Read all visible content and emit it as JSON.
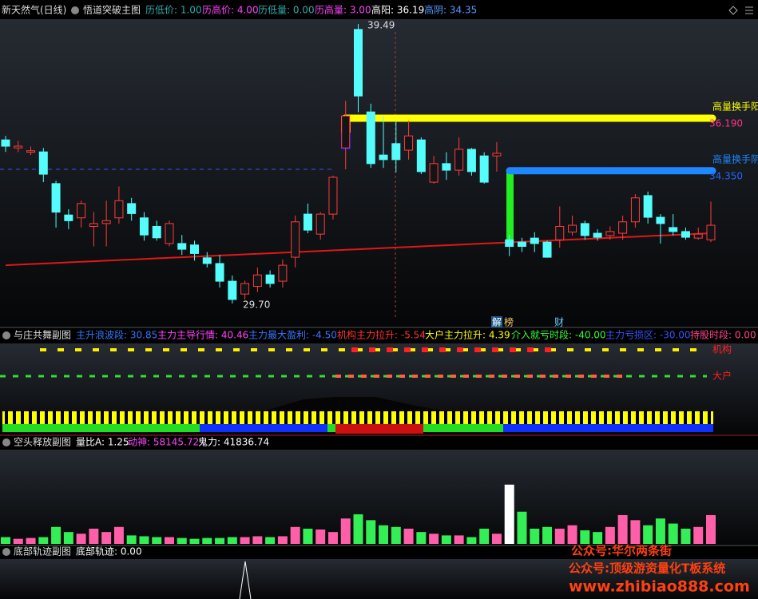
{
  "header": {
    "stock": "新天然气(日线)",
    "indicator": "悟道突破主图",
    "items": [
      "历低价: 1.00",
      "历高价: 4.00",
      "历低量: 0.00",
      "历高量: 3.00",
      "高阳: 36.19",
      "高阴: 34.35"
    ]
  },
  "main": {
    "type": "candlestick",
    "ylim": [
      28.86,
      39.66
    ],
    "up_color": "#ff3c3c",
    "down_color": "#54fcfc",
    "ma_color": "#e01818",
    "candles": [
      [
        35.43,
        35.57,
        35.01,
        35.21
      ],
      [
        35.15,
        35.4,
        35.0,
        35.21
      ],
      [
        35.0,
        35.2,
        34.9,
        35.05
      ],
      [
        35.01,
        35.15,
        33.95,
        34.23
      ],
      [
        33.9,
        34.0,
        32.36,
        32.9
      ],
      [
        32.8,
        33.0,
        32.3,
        32.6
      ],
      [
        32.7,
        33.3,
        32.36,
        33.2
      ],
      [
        32.4,
        32.9,
        31.7,
        32.5
      ],
      [
        32.5,
        33.3,
        31.7,
        32.6
      ],
      [
        32.7,
        33.8,
        32.5,
        33.3
      ],
      [
        33.2,
        33.4,
        32.6,
        32.85
      ],
      [
        32.7,
        32.9,
        31.9,
        32.1
      ],
      [
        32.4,
        32.6,
        31.9,
        32.0
      ],
      [
        31.8,
        32.6,
        31.7,
        32.5
      ],
      [
        31.8,
        32.1,
        31.4,
        31.6
      ],
      [
        31.75,
        31.9,
        31.2,
        31.45
      ],
      [
        31.3,
        31.5,
        30.96,
        31.1
      ],
      [
        31.1,
        31.4,
        30.26,
        30.48
      ],
      [
        30.48,
        30.68,
        29.7,
        29.84
      ],
      [
        30.03,
        30.5,
        29.84,
        30.4
      ],
      [
        30.3,
        30.96,
        30.1,
        30.7
      ],
      [
        30.7,
        30.86,
        30.26,
        30.4
      ],
      [
        30.48,
        31.24,
        30.26,
        31.04
      ],
      [
        31.32,
        32.78,
        30.96,
        32.56
      ],
      [
        32.83,
        33.2,
        32.16,
        32.27
      ],
      [
        32.13,
        32.9,
        31.94,
        32.83
      ],
      [
        32.83,
        34.18,
        32.64,
        34.12
      ],
      [
        35.15,
        36.8,
        34.4,
        36.27
      ],
      [
        39.3,
        39.49,
        36.4,
        36.97
      ],
      [
        36.41,
        36.7,
        34.45,
        34.6
      ],
      [
        34.9,
        36.27,
        34.45,
        34.74
      ],
      [
        35.3,
        36.1,
        34.3,
        34.74
      ],
      [
        35.07,
        36.1,
        34.74,
        35.57
      ],
      [
        35.43,
        35.52,
        34.23,
        34.32
      ],
      [
        33.95,
        34.87,
        33.9,
        34.6
      ],
      [
        34.6,
        35.0,
        34.03,
        34.37
      ],
      [
        34.37,
        35.52,
        34.18,
        35.1
      ],
      [
        35.1,
        35.15,
        34.18,
        34.32
      ],
      [
        34.87,
        35.0,
        33.9,
        33.95
      ],
      [
        34.87,
        35.35,
        34.32,
        34.96
      ],
      [
        31.93,
        32.1,
        31.36,
        31.7
      ],
      [
        31.85,
        32.0,
        31.5,
        31.7
      ],
      [
        31.99,
        32.2,
        31.5,
        31.8
      ],
      [
        31.85,
        31.9,
        31.3,
        31.32
      ],
      [
        31.93,
        33.1,
        31.65,
        32.4
      ],
      [
        32.2,
        32.78,
        32.08,
        32.44
      ],
      [
        32.5,
        32.6,
        31.93,
        32.08
      ],
      [
        32.16,
        32.3,
        31.9,
        32.02
      ],
      [
        32.08,
        32.4,
        31.93,
        32.22
      ],
      [
        32.16,
        32.78,
        31.93,
        32.56
      ],
      [
        32.56,
        33.53,
        32.36,
        33.4
      ],
      [
        33.48,
        33.62,
        32.5,
        32.72
      ],
      [
        32.72,
        32.83,
        31.8,
        32.5
      ],
      [
        32.36,
        32.83,
        32.08,
        32.22
      ],
      [
        32.22,
        32.36,
        31.93,
        32.02
      ],
      [
        31.99,
        32.36,
        31.93,
        32.13
      ],
      [
        31.93,
        33.27,
        31.85,
        32.44
      ]
    ],
    "ma": [
      31.04,
      31.06,
      31.08,
      31.1,
      31.12,
      31.14,
      31.16,
      31.18,
      31.2,
      31.22,
      31.24,
      31.26,
      31.28,
      31.3,
      31.32,
      31.34,
      31.36,
      31.38,
      31.4,
      31.42,
      31.44,
      31.46,
      31.48,
      31.5,
      31.52,
      31.54,
      31.56,
      31.58,
      31.6,
      31.62,
      31.64,
      31.66,
      31.68,
      31.7,
      31.72,
      31.74,
      31.76,
      31.78,
      31.8,
      31.82,
      31.84,
      31.86,
      31.88,
      31.9,
      31.92,
      31.94,
      31.96,
      31.98,
      32.0,
      32.02,
      32.04,
      32.06,
      32.08,
      32.1,
      32.12,
      32.14,
      32.16
    ],
    "high_label": "39.49",
    "low_label": "29.70",
    "levels": [
      {
        "name": "高量换手阳",
        "value": 36.19,
        "value_label": "36.190",
        "color": "#ffff00"
      },
      {
        "name": "高量换手阴",
        "value": 34.35,
        "value_label": "34.350",
        "color": "#1e88ff"
      }
    ],
    "tags": [
      "解",
      "榜",
      "财"
    ]
  },
  "panel2": {
    "title": "与庄共舞副图",
    "items": [
      "主升浪波段: 30.85",
      "主力主导行情: 40.46",
      "主力最大盈利: -4.50",
      "机构主力拉升: -5.54",
      "大户主力拉升: 4.39",
      "介入就亏时段: -40.00",
      "主力亏损区: -30.00",
      "持股时段: 0.00"
    ],
    "side_labels": [
      "机构",
      "大户"
    ]
  },
  "panel3": {
    "title": "空头释放副图",
    "items": [
      "量比A: 1.25",
      "动神: 58145.72",
      "鬼力: 41836.74"
    ],
    "vlim": [
      0,
      100
    ],
    "up_color": "#ff5fa8",
    "down_color": "#33ee55",
    "volume": [
      8,
      6,
      7,
      8,
      20,
      14,
      12,
      18,
      14,
      20,
      10,
      9,
      8,
      8,
      7,
      6,
      7,
      7,
      8,
      8,
      9,
      8,
      9,
      20,
      18,
      17,
      14,
      30,
      35,
      28,
      22,
      20,
      18,
      14,
      12,
      10,
      10,
      8,
      18,
      12,
      70,
      38,
      18,
      20,
      18,
      22,
      16,
      14,
      20,
      34,
      28,
      22,
      30,
      24,
      18,
      20,
      34
    ]
  },
  "panel4": {
    "title": "底部轨迹副图",
    "items": [
      "底部轨迹: 0.00"
    ]
  },
  "watermarks": [
    "公众号:华尔两条街",
    "公众号:顶级游资量化T板系统",
    "www.zhibiao888.com"
  ]
}
